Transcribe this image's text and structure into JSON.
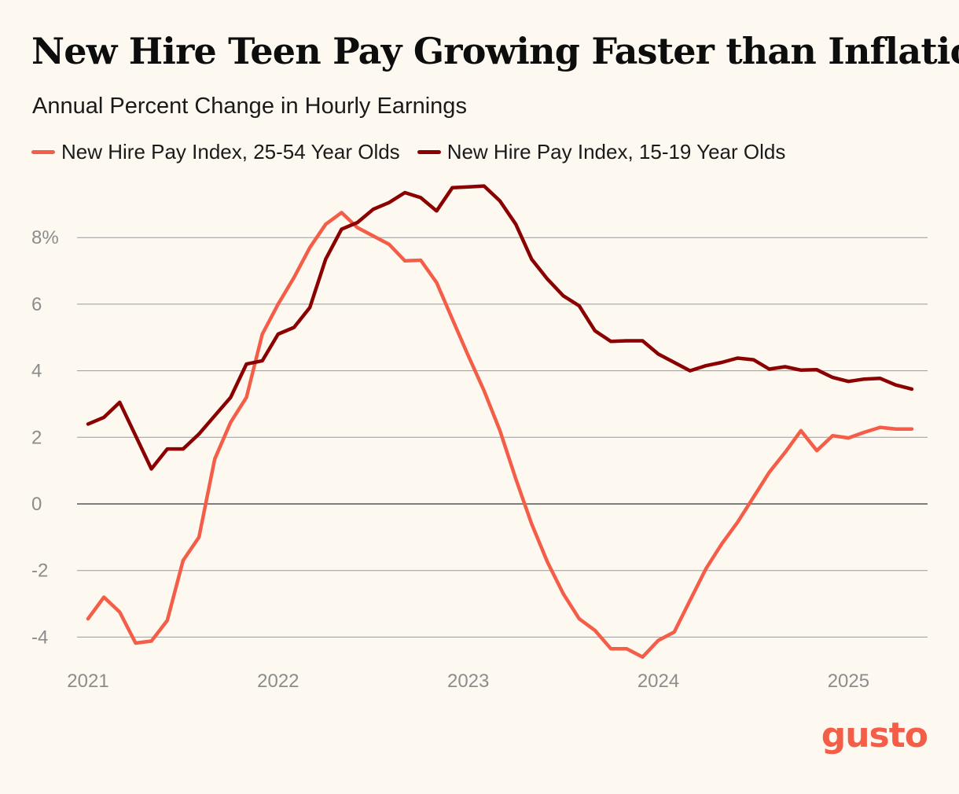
{
  "colors": {
    "background": "#fdf9f0",
    "series_adult": "#f45d48",
    "series_teen": "#8b0000",
    "grid": "#9a9a9a",
    "zero_line": "#555555",
    "axis_text": "#8c8c8c",
    "brand": "#f45d48"
  },
  "brand": {
    "logo_text": "gusto"
  },
  "chart_data": {
    "type": "line",
    "title": "New Hire Teen Pay Growing Faster than Inflation",
    "subtitle": "Annual Percent Change in Hourly Earnings",
    "xlabel": "",
    "ylabel": "",
    "legend_position": "top-left",
    "grid": true,
    "xlim": [
      2021.0,
      2025.5
    ],
    "ylim": [
      -4.8,
      9.6
    ],
    "x_ticks": [
      2021,
      2022,
      2023,
      2024,
      2025
    ],
    "x_tick_labels": [
      "2021",
      "2022",
      "2023",
      "2024",
      "2025"
    ],
    "y_ticks": [
      -4,
      -2,
      0,
      2,
      4,
      6,
      8
    ],
    "y_tick_labels": [
      "-4",
      "-2",
      "0",
      "2",
      "4",
      "6",
      "8%"
    ],
    "series": [
      {
        "name": "New Hire Pay Index, 25-54 Year Olds",
        "color": "#f45d48",
        "values": [
          -3.45,
          -2.8,
          -3.25,
          -4.18,
          -4.12,
          -3.5,
          -1.7,
          -1.0,
          1.35,
          2.45,
          3.2,
          5.1,
          6.0,
          6.8,
          7.7,
          8.4,
          8.75,
          8.3,
          8.05,
          7.8,
          7.3,
          7.32,
          6.65,
          5.55,
          4.45,
          3.4,
          2.2,
          0.75,
          -0.6,
          -1.75,
          -2.7,
          -3.45,
          -3.8,
          -4.35,
          -4.35,
          -4.6,
          -4.1,
          -3.85,
          -2.9,
          -1.95,
          -1.2,
          -0.55,
          0.2,
          0.95,
          1.55,
          2.2,
          1.6,
          2.05,
          1.98,
          2.15,
          2.3,
          2.25,
          2.25
        ]
      },
      {
        "name": "New Hire Pay Index, 15-19 Year Olds",
        "color": "#8b0000",
        "values": [
          2.4,
          2.6,
          3.05,
          2.05,
          1.05,
          1.65,
          1.65,
          2.1,
          2.65,
          3.2,
          4.2,
          4.3,
          5.1,
          5.3,
          5.9,
          7.35,
          8.25,
          8.45,
          8.85,
          9.05,
          9.35,
          9.2,
          8.8,
          9.5,
          9.52,
          9.55,
          9.1,
          8.4,
          7.35,
          6.75,
          6.25,
          5.95,
          5.2,
          4.88,
          4.9,
          4.9,
          4.5,
          4.25,
          4.0,
          4.15,
          4.25,
          4.38,
          4.33,
          4.05,
          4.12,
          4.02,
          4.03,
          3.8,
          3.68,
          3.75,
          3.77,
          3.57,
          3.45
        ]
      }
    ]
  }
}
